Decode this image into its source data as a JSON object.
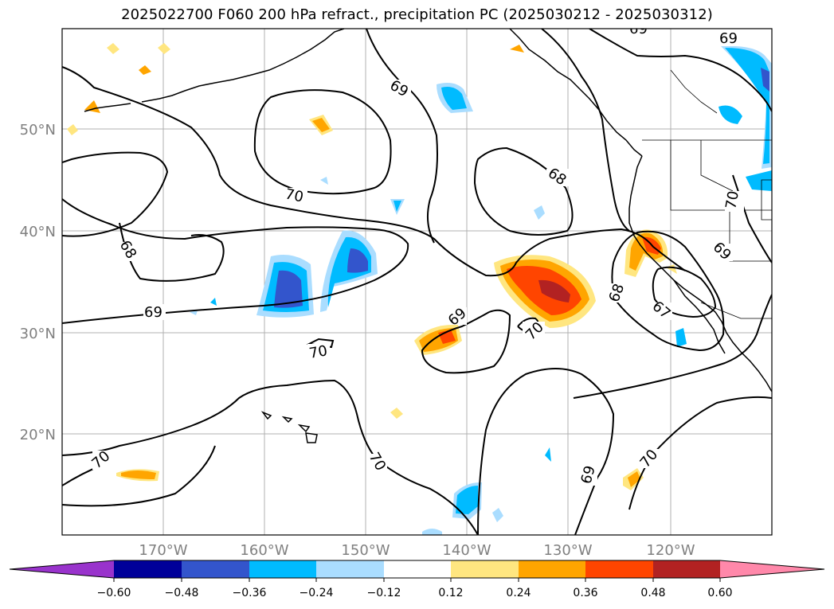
{
  "title": "2025022700 F060 200 hPa refract., precipitation PC (2025030212 - 2025030312)",
  "map": {
    "lat_labels": [
      "50°N",
      "40°N",
      "30°N",
      "20°N"
    ],
    "lon_labels": [
      "170°W",
      "160°W",
      "150°W",
      "140°W",
      "130°W",
      "120°W"
    ],
    "contour_labels": [
      "69",
      "69",
      "70",
      "68",
      "68",
      "69",
      "70",
      "69",
      "70",
      "70",
      "68",
      "67",
      "69",
      "70",
      "69",
      "70"
    ],
    "grid": "on"
  },
  "colorbar": {
    "colors": [
      "#9933cc",
      "#000099",
      "#3355cc",
      "#00bbff",
      "#aaddff",
      "#ffffff",
      "#ffe680",
      "#ffa500",
      "#ff4500",
      "#b22222",
      "#ff88aa"
    ],
    "tick_labels": [
      "−0.60",
      "−0.48",
      "−0.36",
      "−0.24",
      "−0.12",
      "0.12",
      "0.24",
      "0.36",
      "0.48",
      "0.60"
    ]
  }
}
